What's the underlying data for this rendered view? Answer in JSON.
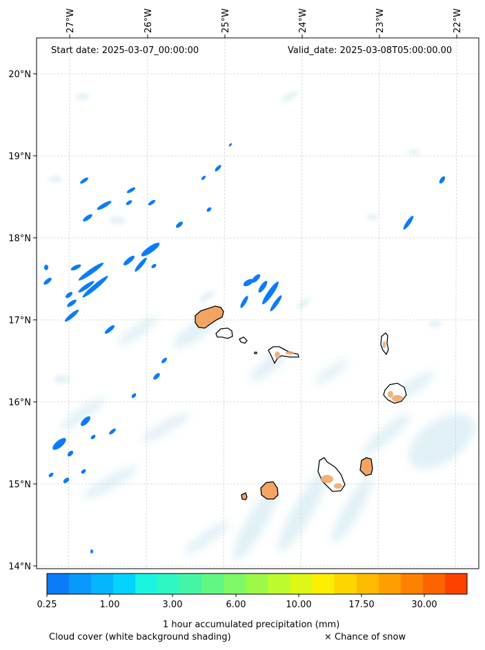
{
  "header": {
    "start_date": "Start date: 2025-03-07_00:00:00",
    "valid_date": "Valid_date: 2025-03-08T05:00:00.00"
  },
  "axes": {
    "lon_labels": [
      "27°W",
      "26°W",
      "25°W",
      "24°W",
      "23°W",
      "22°W"
    ],
    "lat_labels": [
      "20°N",
      "19°N",
      "18°N",
      "17°N",
      "16°N",
      "15°N",
      "14°N"
    ]
  },
  "colorbar": {
    "title": "1 hour accumulated precipitation (mm)",
    "tick_labels": [
      "0.25",
      "1.00",
      "3.00",
      "6.00",
      "10.00",
      "17.50",
      "30.00"
    ],
    "colors": [
      "#0a7cf7",
      "#0799f9",
      "#04b6fb",
      "#02d4fd",
      "#1af5e2",
      "#2ef7c4",
      "#46f5a4",
      "#62f783",
      "#7ff966",
      "#9df948",
      "#bdfb2e",
      "#def714",
      "#fcee00",
      "#fdd500",
      "#fdbb00",
      "#fd9f00",
      "#fd8200",
      "#fd6400",
      "#fc4100"
    ]
  },
  "footer": {
    "cloud_note": "Cloud cover (white background shading)",
    "snow_note": "× Chance of snow"
  },
  "colors": {
    "rain_blue": "#0a7cf7",
    "island_fill": "#f2a463",
    "cloud_haze": "#a9d6e5"
  }
}
